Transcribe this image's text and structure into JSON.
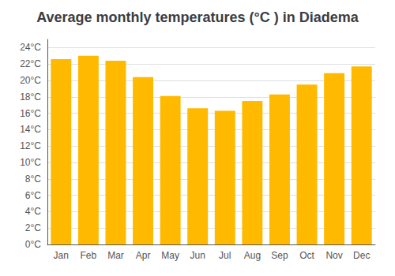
{
  "chart_data": {
    "type": "bar",
    "title": "Average monthly temperatures (°C ) in Diadema",
    "categories": [
      "Jan",
      "Feb",
      "Mar",
      "Apr",
      "May",
      "Jun",
      "Jul",
      "Aug",
      "Sep",
      "Oct",
      "Nov",
      "Dec"
    ],
    "values": [
      22.6,
      23.0,
      22.4,
      20.4,
      18.1,
      16.6,
      16.3,
      17.5,
      18.3,
      19.5,
      20.9,
      21.7
    ],
    "color": "#FFBA00",
    "ylim": [
      0,
      25
    ],
    "yticks": [
      {
        "value": 0,
        "label": "0°C"
      },
      {
        "value": 2,
        "label": "2°C"
      },
      {
        "value": 4,
        "label": "4°C"
      },
      {
        "value": 6,
        "label": "6°C"
      },
      {
        "value": 8,
        "label": "8°C"
      },
      {
        "value": 10,
        "label": "10°C"
      },
      {
        "value": 12,
        "label": "12°C"
      },
      {
        "value": 14,
        "label": "14°C"
      },
      {
        "value": 16,
        "label": "16°C"
      },
      {
        "value": 18,
        "label": "18°C"
      },
      {
        "value": 20,
        "label": "20°C"
      },
      {
        "value": 22,
        "label": "22°C"
      },
      {
        "value": 24,
        "label": "24°C"
      }
    ],
    "grid": true
  }
}
